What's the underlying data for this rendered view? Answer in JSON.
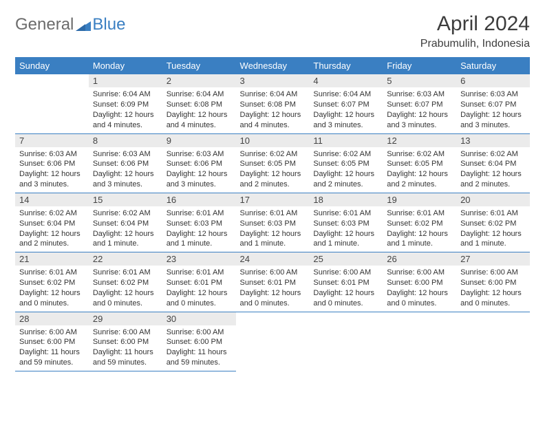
{
  "brand": {
    "part1": "General",
    "part2": "Blue"
  },
  "colors": {
    "accent": "#3a7fc2",
    "header_bg": "#3a7fc2",
    "daynum_bg": "#ebebeb",
    "text": "#333333"
  },
  "title": "April 2024",
  "subtitle": "Prabumulih, Indonesia",
  "weekdays": [
    "Sunday",
    "Monday",
    "Tuesday",
    "Wednesday",
    "Thursday",
    "Friday",
    "Saturday"
  ],
  "weeks": [
    [
      null,
      {
        "d": "1",
        "sr": "Sunrise: 6:04 AM",
        "ss": "Sunset: 6:09 PM",
        "dl1": "Daylight: 12 hours",
        "dl2": "and 4 minutes."
      },
      {
        "d": "2",
        "sr": "Sunrise: 6:04 AM",
        "ss": "Sunset: 6:08 PM",
        "dl1": "Daylight: 12 hours",
        "dl2": "and 4 minutes."
      },
      {
        "d": "3",
        "sr": "Sunrise: 6:04 AM",
        "ss": "Sunset: 6:08 PM",
        "dl1": "Daylight: 12 hours",
        "dl2": "and 4 minutes."
      },
      {
        "d": "4",
        "sr": "Sunrise: 6:04 AM",
        "ss": "Sunset: 6:07 PM",
        "dl1": "Daylight: 12 hours",
        "dl2": "and 3 minutes."
      },
      {
        "d": "5",
        "sr": "Sunrise: 6:03 AM",
        "ss": "Sunset: 6:07 PM",
        "dl1": "Daylight: 12 hours",
        "dl2": "and 3 minutes."
      },
      {
        "d": "6",
        "sr": "Sunrise: 6:03 AM",
        "ss": "Sunset: 6:07 PM",
        "dl1": "Daylight: 12 hours",
        "dl2": "and 3 minutes."
      }
    ],
    [
      {
        "d": "7",
        "sr": "Sunrise: 6:03 AM",
        "ss": "Sunset: 6:06 PM",
        "dl1": "Daylight: 12 hours",
        "dl2": "and 3 minutes."
      },
      {
        "d": "8",
        "sr": "Sunrise: 6:03 AM",
        "ss": "Sunset: 6:06 PM",
        "dl1": "Daylight: 12 hours",
        "dl2": "and 3 minutes."
      },
      {
        "d": "9",
        "sr": "Sunrise: 6:03 AM",
        "ss": "Sunset: 6:06 PM",
        "dl1": "Daylight: 12 hours",
        "dl2": "and 3 minutes."
      },
      {
        "d": "10",
        "sr": "Sunrise: 6:02 AM",
        "ss": "Sunset: 6:05 PM",
        "dl1": "Daylight: 12 hours",
        "dl2": "and 2 minutes."
      },
      {
        "d": "11",
        "sr": "Sunrise: 6:02 AM",
        "ss": "Sunset: 6:05 PM",
        "dl1": "Daylight: 12 hours",
        "dl2": "and 2 minutes."
      },
      {
        "d": "12",
        "sr": "Sunrise: 6:02 AM",
        "ss": "Sunset: 6:05 PM",
        "dl1": "Daylight: 12 hours",
        "dl2": "and 2 minutes."
      },
      {
        "d": "13",
        "sr": "Sunrise: 6:02 AM",
        "ss": "Sunset: 6:04 PM",
        "dl1": "Daylight: 12 hours",
        "dl2": "and 2 minutes."
      }
    ],
    [
      {
        "d": "14",
        "sr": "Sunrise: 6:02 AM",
        "ss": "Sunset: 6:04 PM",
        "dl1": "Daylight: 12 hours",
        "dl2": "and 2 minutes."
      },
      {
        "d": "15",
        "sr": "Sunrise: 6:02 AM",
        "ss": "Sunset: 6:04 PM",
        "dl1": "Daylight: 12 hours",
        "dl2": "and 1 minute."
      },
      {
        "d": "16",
        "sr": "Sunrise: 6:01 AM",
        "ss": "Sunset: 6:03 PM",
        "dl1": "Daylight: 12 hours",
        "dl2": "and 1 minute."
      },
      {
        "d": "17",
        "sr": "Sunrise: 6:01 AM",
        "ss": "Sunset: 6:03 PM",
        "dl1": "Daylight: 12 hours",
        "dl2": "and 1 minute."
      },
      {
        "d": "18",
        "sr": "Sunrise: 6:01 AM",
        "ss": "Sunset: 6:03 PM",
        "dl1": "Daylight: 12 hours",
        "dl2": "and 1 minute."
      },
      {
        "d": "19",
        "sr": "Sunrise: 6:01 AM",
        "ss": "Sunset: 6:02 PM",
        "dl1": "Daylight: 12 hours",
        "dl2": "and 1 minute."
      },
      {
        "d": "20",
        "sr": "Sunrise: 6:01 AM",
        "ss": "Sunset: 6:02 PM",
        "dl1": "Daylight: 12 hours",
        "dl2": "and 1 minute."
      }
    ],
    [
      {
        "d": "21",
        "sr": "Sunrise: 6:01 AM",
        "ss": "Sunset: 6:02 PM",
        "dl1": "Daylight: 12 hours",
        "dl2": "and 0 minutes."
      },
      {
        "d": "22",
        "sr": "Sunrise: 6:01 AM",
        "ss": "Sunset: 6:02 PM",
        "dl1": "Daylight: 12 hours",
        "dl2": "and 0 minutes."
      },
      {
        "d": "23",
        "sr": "Sunrise: 6:01 AM",
        "ss": "Sunset: 6:01 PM",
        "dl1": "Daylight: 12 hours",
        "dl2": "and 0 minutes."
      },
      {
        "d": "24",
        "sr": "Sunrise: 6:00 AM",
        "ss": "Sunset: 6:01 PM",
        "dl1": "Daylight: 12 hours",
        "dl2": "and 0 minutes."
      },
      {
        "d": "25",
        "sr": "Sunrise: 6:00 AM",
        "ss": "Sunset: 6:01 PM",
        "dl1": "Daylight: 12 hours",
        "dl2": "and 0 minutes."
      },
      {
        "d": "26",
        "sr": "Sunrise: 6:00 AM",
        "ss": "Sunset: 6:00 PM",
        "dl1": "Daylight: 12 hours",
        "dl2": "and 0 minutes."
      },
      {
        "d": "27",
        "sr": "Sunrise: 6:00 AM",
        "ss": "Sunset: 6:00 PM",
        "dl1": "Daylight: 12 hours",
        "dl2": "and 0 minutes."
      }
    ],
    [
      {
        "d": "28",
        "sr": "Sunrise: 6:00 AM",
        "ss": "Sunset: 6:00 PM",
        "dl1": "Daylight: 11 hours",
        "dl2": "and 59 minutes."
      },
      {
        "d": "29",
        "sr": "Sunrise: 6:00 AM",
        "ss": "Sunset: 6:00 PM",
        "dl1": "Daylight: 11 hours",
        "dl2": "and 59 minutes."
      },
      {
        "d": "30",
        "sr": "Sunrise: 6:00 AM",
        "ss": "Sunset: 6:00 PM",
        "dl1": "Daylight: 11 hours",
        "dl2": "and 59 minutes."
      },
      null,
      null,
      null,
      null
    ]
  ]
}
